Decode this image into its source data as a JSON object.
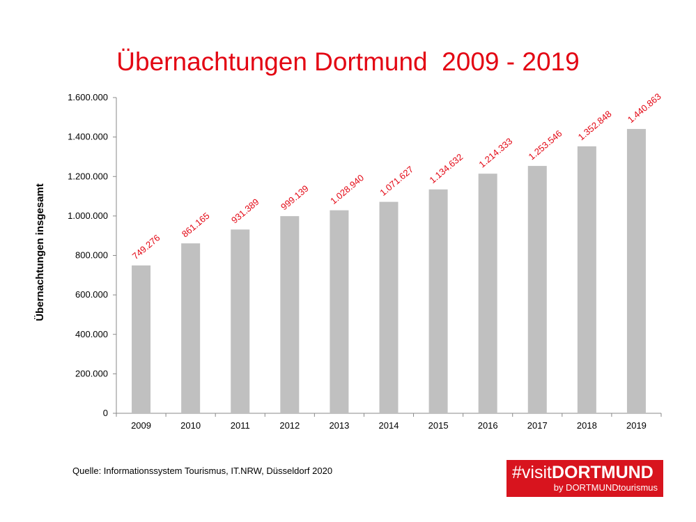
{
  "chart_data": {
    "type": "bar",
    "title": "Übernachtungen Dortmund  2009 - 2019",
    "xlabel": "",
    "ylabel": "Übernachtungen insgesamt",
    "categories": [
      "2009",
      "2010",
      "2011",
      "2012",
      "2013",
      "2014",
      "2015",
      "2016",
      "2017",
      "2018",
      "2019"
    ],
    "values": [
      749276,
      861165,
      931389,
      999139,
      1028940,
      1071627,
      1134632,
      1214333,
      1253546,
      1352848,
      1440863
    ],
    "data_labels": [
      "749.276",
      "861.165",
      "931.389",
      "999.139",
      "1.028.940",
      "1.071.627",
      "1.134.632",
      "1.214.333",
      "1.253.546",
      "1.352.848",
      "1.440.863"
    ],
    "ylim": [
      0,
      1600000
    ],
    "yticks": [
      0,
      200000,
      400000,
      600000,
      800000,
      1000000,
      1200000,
      1400000,
      1600000
    ],
    "ytick_labels": [
      "0",
      "200.000",
      "400.000",
      "600.000",
      "800.000",
      "1.000.000",
      "1.200.000",
      "1.400.000",
      "1.600.000"
    ],
    "grid": false,
    "bar_color": "#c0c0c0",
    "label_color": "#e30613"
  },
  "footer": {
    "source": "Quelle: Informationssystem Tourismus, IT.NRW, Düsseldorf 2020"
  },
  "logo": {
    "prefix": "#visit",
    "brand": "DORTMUND",
    "tagline": "by DORTMUNDtourismus"
  }
}
